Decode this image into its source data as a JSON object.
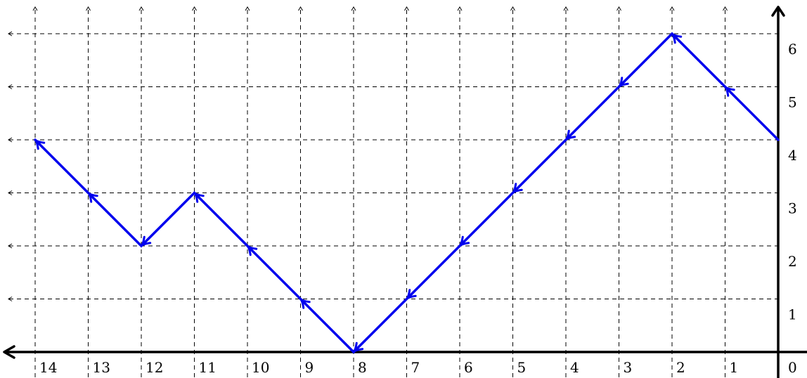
{
  "chart_data": {
    "type": "line",
    "title": "",
    "xlabel": "",
    "ylabel": "",
    "x_direction": "decreasing-left-to-right",
    "xlim": [
      14,
      0
    ],
    "ylim": [
      0,
      6
    ],
    "grid": true,
    "grid_style": "dashed",
    "x_ticks": [
      "14",
      "13",
      "12",
      "11",
      "10",
      "9",
      "8",
      "7",
      "6",
      "5",
      "4",
      "3",
      "2",
      "1",
      "0"
    ],
    "y_ticks": [
      "1",
      "2",
      "3",
      "4",
      "5",
      "6"
    ],
    "series": [
      {
        "color": "#0000ee",
        "markers": "arrowheads",
        "x": [
          0,
          1,
          2,
          3,
          4,
          5,
          6,
          7,
          8,
          9,
          10,
          11,
          12,
          13,
          14
        ],
        "y": [
          4,
          5,
          6,
          5,
          4,
          3,
          2,
          1,
          0,
          1,
          2,
          3,
          2,
          3,
          4
        ]
      }
    ]
  }
}
